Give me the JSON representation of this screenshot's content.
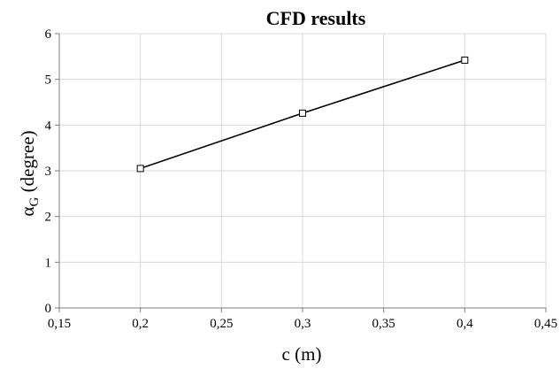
{
  "chart_data": {
    "type": "scatter",
    "title": "CFD results",
    "xlabel": "c (m)",
    "ylabel": "α",
    "ylabel_subscript": "G",
    "ylabel_suffix": " (degree)",
    "xlim": [
      0.15,
      0.45
    ],
    "ylim": [
      0,
      6
    ],
    "x_ticks": [
      0.15,
      0.2,
      0.25,
      0.3,
      0.35,
      0.4,
      0.45
    ],
    "x_tick_labels": [
      "0,15",
      "0,2",
      "0,25",
      "0,3",
      "0,35",
      "0,4",
      "0,45"
    ],
    "y_ticks": [
      0,
      1,
      2,
      3,
      4,
      5,
      6
    ],
    "y_tick_labels": [
      "0",
      "1",
      "2",
      "3",
      "4",
      "5",
      "6"
    ],
    "grid": true,
    "legend": "none",
    "marker": "hollow-square",
    "line_color": "#000000",
    "grid_color": "#d9d9d9",
    "series": [
      {
        "x": [
          0.2,
          0.3,
          0.4
        ],
        "y": [
          3.05,
          4.26,
          5.42
        ]
      }
    ]
  }
}
